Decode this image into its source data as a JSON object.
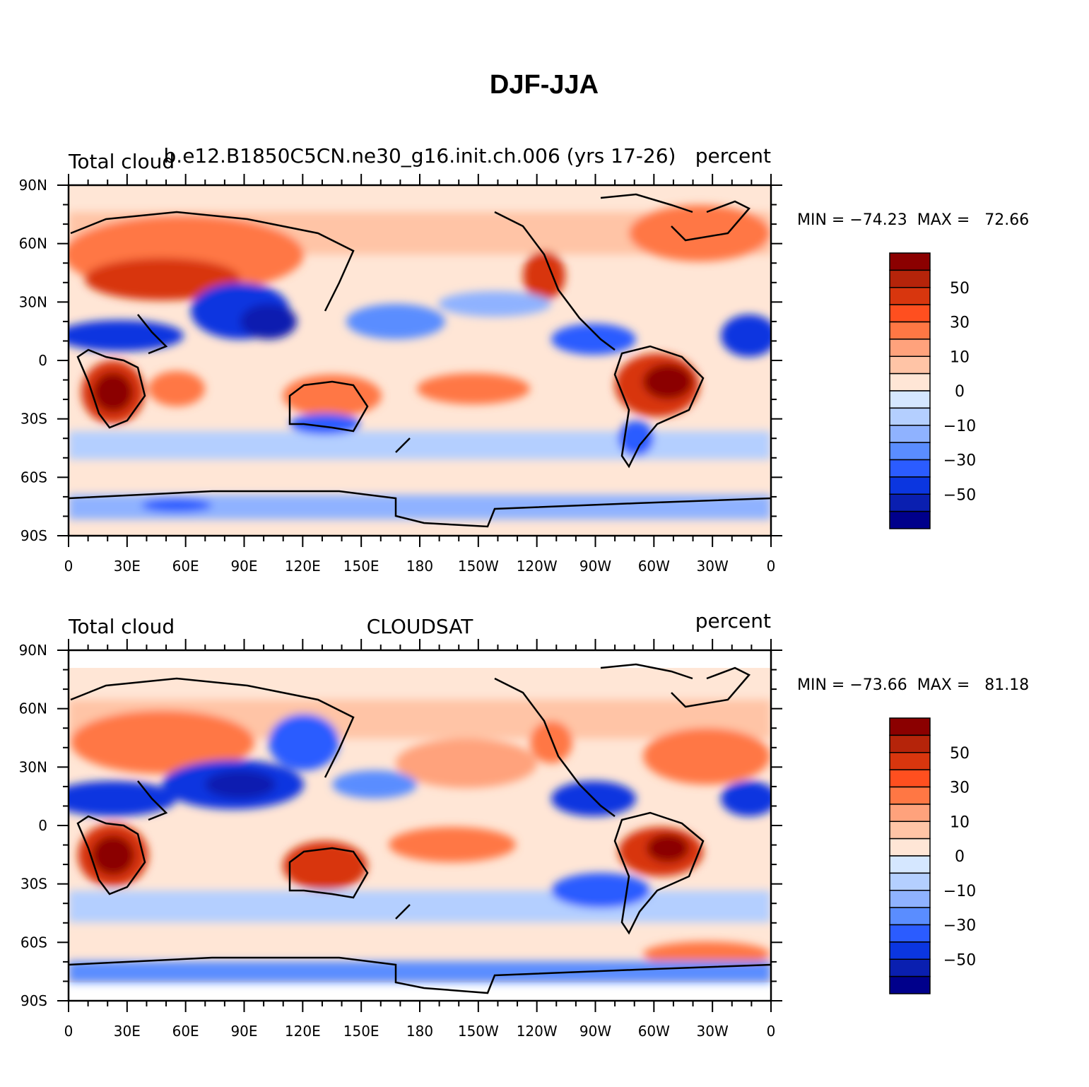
{
  "figure": {
    "title": "DJF-JJA"
  },
  "axes": {
    "y_ticks": [
      "90N",
      "60N",
      "30N",
      "0",
      "30S",
      "60S",
      "90S"
    ],
    "x_ticks": [
      "0",
      "30E",
      "60E",
      "90E",
      "120E",
      "150E",
      "180",
      "150W",
      "120W",
      "90W",
      "60W",
      "30W",
      "0"
    ]
  },
  "colorbar": {
    "levels": [
      "-60",
      "-50",
      "-40",
      "-30",
      "-20",
      "-10",
      "-5",
      "0",
      "5",
      "10",
      "20",
      "30",
      "40",
      "50",
      "60"
    ],
    "labels": [
      "50",
      "30",
      "10",
      "0",
      "−10",
      "−30",
      "−50"
    ],
    "colors": [
      "#8b0000",
      "#b5240a",
      "#d8360e",
      "#ff4f1f",
      "#ff7744",
      "#ffa27c",
      "#ffc4a6",
      "#ffe6d6",
      "#d5e7ff",
      "#b4cfff",
      "#8fb2ff",
      "#5a8dff",
      "#2b5cff",
      "#0b36e0",
      "#0a1fb0",
      "#00008b"
    ]
  },
  "panels": [
    {
      "left_text": "Total cloud",
      "center_text": "b.e12.B1850C5CN.ne30_g16.init.ch.006 (yrs 17-26)",
      "right_text": "percent",
      "min_max": "MIN = −74.23  MAX =   72.66"
    },
    {
      "left_text": "Total cloud",
      "center_text": "CLOUDSAT",
      "right_text": "percent",
      "min_max": "MIN = −73.66  MAX =   81.18"
    }
  ]
}
